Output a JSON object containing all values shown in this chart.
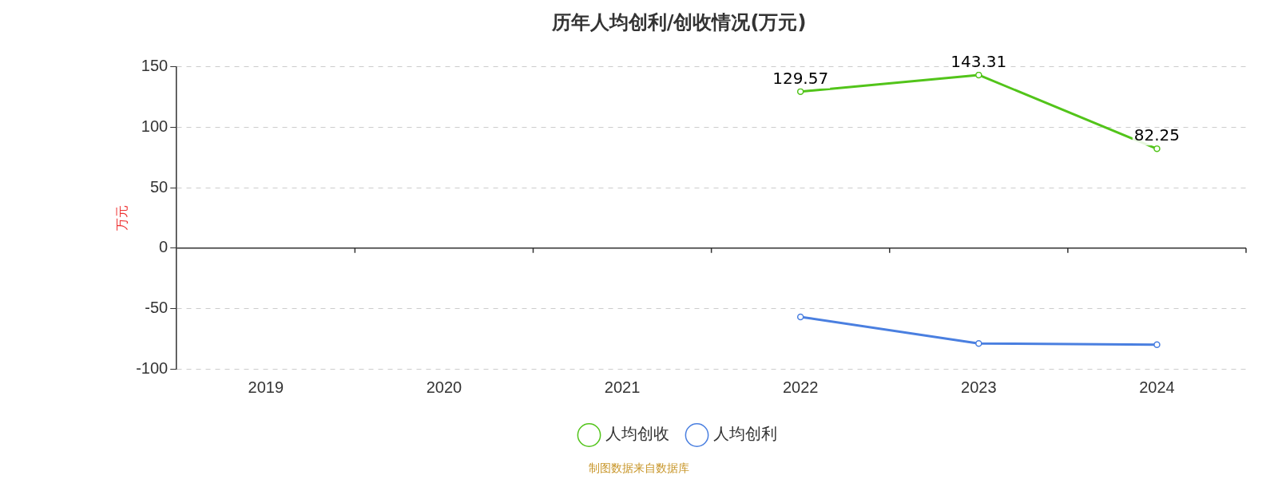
{
  "chart_data": {
    "type": "line",
    "title": "历年人均创利/创收情况(万元)",
    "ylabel": "万元",
    "categories": [
      "2019",
      "2020",
      "2021",
      "2022",
      "2023",
      "2024"
    ],
    "series": [
      {
        "name": "人均创收",
        "color": "#52c41a",
        "values": [
          null,
          null,
          null,
          129.57,
          143.31,
          82.25
        ],
        "value_labels": [
          null,
          null,
          null,
          "129.57",
          "143.31",
          "82.25"
        ]
      },
      {
        "name": "人均创利",
        "color": "#4a7fe0",
        "values": [
          null,
          null,
          null,
          -57,
          -79,
          -80
        ]
      }
    ],
    "ylim": [
      -100,
      150
    ],
    "yticks": [
      -100,
      -50,
      0,
      50,
      100,
      150
    ],
    "grid": "y",
    "legend": "bottom",
    "marker": "circle",
    "line_style": "solid",
    "annotations": [
      "制图数据来自数据库"
    ]
  }
}
